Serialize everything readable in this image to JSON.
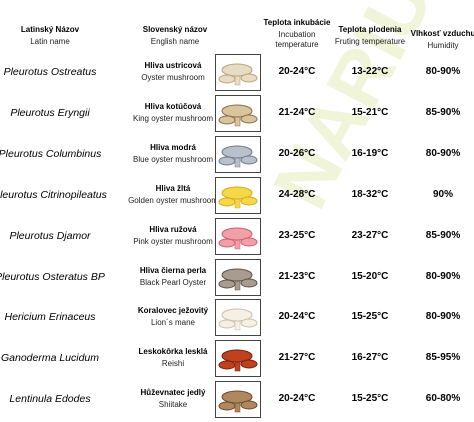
{
  "header": {
    "latin": {
      "title": "Latinský Názov",
      "subtitle": "Latin name"
    },
    "slovak": {
      "title": "Slovenský názov",
      "subtitle": "English name"
    },
    "incubation": {
      "title": "Teplota inkubácie",
      "subtitle": "Incubation temperature"
    },
    "fruiting": {
      "title": "Teplota plodenia",
      "subtitle": "Fruting temperature"
    },
    "humidity": {
      "title": "Vlhkosť vzduchu",
      "subtitle": "Humidity"
    }
  },
  "watermark": "NARIUM",
  "table": {
    "rows": [
      [
        "Pleurotus Ostreatus",
        "Hliva ustricová",
        "Oyster mushroom",
        "20-24°C",
        "13-22°C",
        "80-90%"
      ],
      [
        "Pleurotus Eryngii",
        "Hliva kotúčová",
        "King oyster mushroom",
        "21-24°C",
        "15-21°C",
        "85-90%"
      ],
      [
        "Pleurotus Columbinus",
        "Hliva modrá",
        "Blue oyster mushroom",
        "20-26°C",
        "16-19°C",
        "80-90%"
      ],
      [
        "Pleurotus Citrinopileatus",
        "Hliva žltá",
        "Golden oyster mushroom",
        "24-28°C",
        "18-32°C",
        "90%"
      ],
      [
        "Pleurotus Djamor",
        "Hliva ružová",
        "Pink oyster mushroom",
        "23-25°C",
        "23-27°C",
        "85-90%"
      ],
      [
        "Pleurotus Osteratus BP",
        "Hliva čierna perla",
        "Black Pearl Oyster",
        "21-23°C",
        "15-20°C",
        "80-90%"
      ],
      [
        "Hericium Erinaceus",
        "Koralovec ježovitý",
        "Lion´s mane",
        "20-24°C",
        "15-25°C",
        "80-90%"
      ],
      [
        "Ganoderma Lucidum",
        "Leskokôrka lesklá",
        "Reishi",
        "21-27°C",
        "16-27°C",
        "85-95%"
      ],
      [
        "Lentinula Edodes",
        "Hůževnatec jedlý",
        "Shiitake",
        "20-24°C",
        "15-25°C",
        "60-80%"
      ]
    ]
  }
}
